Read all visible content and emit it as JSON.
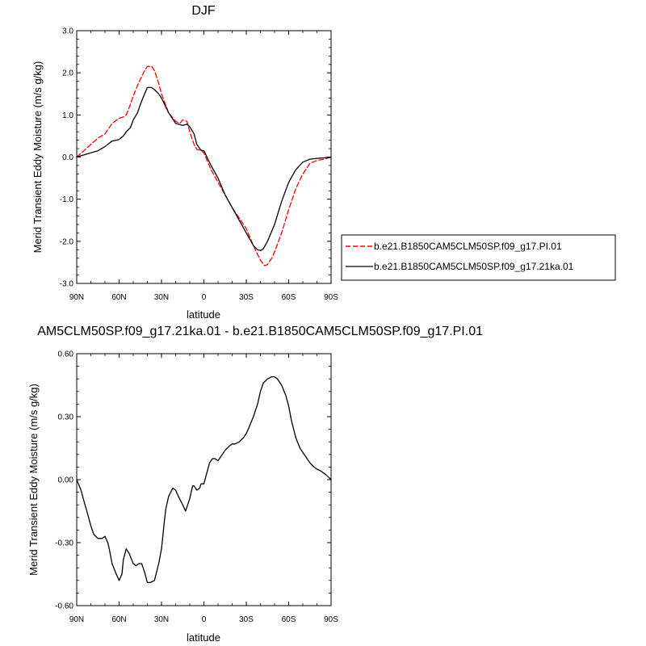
{
  "chart_data": [
    {
      "type": "line",
      "title": "DJF",
      "xlabel": "latitude",
      "ylabel": "Merid Transient Eddy Moisture (m/s g/kg)",
      "x_tick_labels": [
        "90N",
        "60N",
        "30N",
        "0",
        "30S",
        "60S",
        "90S"
      ],
      "x_ticks": [
        90,
        60,
        30,
        0,
        -30,
        -60,
        -90
      ],
      "xlim": [
        90,
        -90
      ],
      "y_tick_labels": [
        "3.0",
        "2.0",
        "1.0",
        "0.0",
        "-1.0",
        "-2.0",
        "-3.0"
      ],
      "y_ticks": [
        3,
        2,
        1,
        0,
        -1,
        -2,
        -3
      ],
      "ylim": [
        -3,
        3
      ],
      "grid": false,
      "legend_position": "right-outside",
      "series": [
        {
          "name": "b.e21.B1850CAM5CLM50SP.f09_g17.PI.01",
          "color": "#ff0000",
          "dash": "dashed",
          "x": [
            90,
            85,
            80,
            75,
            70,
            65,
            60,
            57,
            55,
            52,
            50,
            47,
            45,
            42,
            40,
            37,
            35,
            32,
            30,
            25,
            20,
            17,
            15,
            12,
            10,
            7,
            5,
            2,
            0,
            -5,
            -10,
            -15,
            -20,
            -25,
            -30,
            -35,
            -40,
            -43,
            -45,
            -48,
            -50,
            -55,
            -60,
            -65,
            -70,
            -75,
            -80,
            -85,
            -90
          ],
          "y": [
            0.0,
            0.15,
            0.3,
            0.45,
            0.55,
            0.8,
            0.92,
            0.95,
            1.0,
            1.25,
            1.45,
            1.7,
            1.85,
            2.05,
            2.15,
            2.15,
            2.05,
            1.75,
            1.5,
            1.05,
            0.85,
            0.8,
            0.88,
            0.85,
            0.6,
            0.3,
            0.18,
            0.16,
            0.1,
            -0.3,
            -0.6,
            -0.9,
            -1.2,
            -1.45,
            -1.7,
            -2.1,
            -2.45,
            -2.58,
            -2.55,
            -2.4,
            -2.25,
            -1.8,
            -1.25,
            -0.75,
            -0.4,
            -0.15,
            -0.08,
            -0.05,
            0.0
          ]
        },
        {
          "name": "b.e21.B1850CAM5CLM50SP.f09_g17.21ka.01",
          "color": "#000000",
          "dash": "solid",
          "x": [
            90,
            85,
            80,
            75,
            70,
            65,
            62,
            60,
            57,
            55,
            52,
            50,
            47,
            45,
            42,
            40,
            37,
            35,
            32,
            30,
            25,
            20,
            15,
            12,
            10,
            7,
            5,
            2,
            0,
            -5,
            -10,
            -15,
            -20,
            -25,
            -30,
            -35,
            -38,
            -40,
            -42,
            -45,
            -50,
            -55,
            -60,
            -65,
            -70,
            -75,
            -80,
            -85,
            -90
          ],
          "y": [
            0.0,
            0.05,
            0.1,
            0.15,
            0.25,
            0.38,
            0.4,
            0.42,
            0.5,
            0.6,
            0.7,
            0.88,
            1.05,
            1.25,
            1.5,
            1.65,
            1.65,
            1.6,
            1.5,
            1.4,
            1.05,
            0.8,
            0.75,
            0.78,
            0.72,
            0.55,
            0.3,
            0.16,
            0.15,
            -0.2,
            -0.5,
            -0.9,
            -1.2,
            -1.5,
            -1.8,
            -2.1,
            -2.2,
            -2.22,
            -2.18,
            -2.0,
            -1.6,
            -1.05,
            -0.6,
            -0.3,
            -0.12,
            -0.05,
            -0.03,
            -0.02,
            0.0
          ]
        }
      ]
    },
    {
      "type": "line",
      "title": "AM5CLM50SP.f09_g17.21ka.01 - b.e21.B1850CAM5CLM50SP.f09_g17.PI.01",
      "xlabel": "latitude",
      "ylabel": "Merid Transient Eddy Moisture (m/s g/kg)",
      "x_tick_labels": [
        "90N",
        "60N",
        "30N",
        "0",
        "30S",
        "60S",
        "90S"
      ],
      "x_ticks": [
        90,
        60,
        30,
        0,
        -30,
        -60,
        -90
      ],
      "xlim": [
        90,
        -90
      ],
      "y_tick_labels": [
        "0.60",
        "0.30",
        "0.00",
        "-0.30",
        "-0.60"
      ],
      "y_ticks": [
        0.6,
        0.3,
        0.0,
        -0.3,
        -0.6
      ],
      "ylim": [
        -0.6,
        0.6
      ],
      "grid": false,
      "series": [
        {
          "color": "#000000",
          "dash": "solid",
          "x": [
            90,
            87,
            85,
            82,
            80,
            78,
            75,
            72,
            70,
            68,
            67,
            65,
            62,
            60,
            58,
            57,
            55,
            53,
            50,
            48,
            46,
            44,
            42,
            40,
            38,
            35,
            32,
            30,
            28,
            27,
            25,
            22,
            20,
            18,
            15,
            13,
            10,
            8,
            7,
            5,
            3,
            2,
            0,
            -2,
            -4,
            -6,
            -8,
            -10,
            -12,
            -15,
            -18,
            -20,
            -22,
            -25,
            -28,
            -30,
            -32,
            -35,
            -38,
            -40,
            -42,
            -45,
            -48,
            -50,
            -52,
            -55,
            -58,
            -60,
            -62,
            -65,
            -68,
            -70,
            -72,
            -75,
            -78,
            -80,
            -83,
            -85,
            -87,
            -90
          ],
          "y": [
            0.0,
            -0.05,
            -0.1,
            -0.17,
            -0.22,
            -0.26,
            -0.28,
            -0.28,
            -0.27,
            -0.3,
            -0.33,
            -0.4,
            -0.45,
            -0.48,
            -0.45,
            -0.38,
            -0.33,
            -0.35,
            -0.4,
            -0.41,
            -0.4,
            -0.4,
            -0.44,
            -0.49,
            -0.49,
            -0.48,
            -0.4,
            -0.33,
            -0.2,
            -0.14,
            -0.08,
            -0.04,
            -0.05,
            -0.08,
            -0.12,
            -0.15,
            -0.09,
            -0.03,
            -0.03,
            -0.05,
            -0.04,
            -0.02,
            -0.02,
            0.03,
            0.08,
            0.1,
            0.1,
            0.09,
            0.11,
            0.14,
            0.16,
            0.17,
            0.17,
            0.18,
            0.2,
            0.22,
            0.25,
            0.3,
            0.36,
            0.42,
            0.46,
            0.48,
            0.49,
            0.49,
            0.48,
            0.45,
            0.4,
            0.35,
            0.28,
            0.2,
            0.15,
            0.13,
            0.11,
            0.08,
            0.06,
            0.05,
            0.04,
            0.03,
            0.02,
            0.0
          ]
        }
      ]
    }
  ]
}
